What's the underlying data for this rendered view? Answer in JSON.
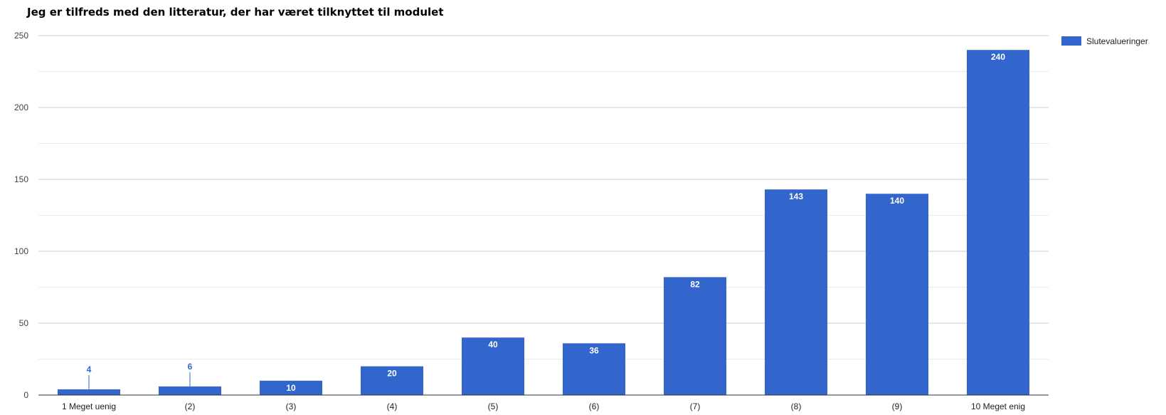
{
  "chart_data": {
    "type": "bar",
    "title": "Jeg er tilfreds med den litteratur, der har været tilknyttet til modulet",
    "xlabel": "",
    "ylabel": "",
    "categories": [
      "1 Meget uenig",
      "(2)",
      "(3)",
      "(4)",
      "(5)",
      "(6)",
      "(7)",
      "(8)",
      "(9)",
      "10 Meget enig"
    ],
    "series": [
      {
        "name": "Slutevalueringer",
        "values": [
          4,
          6,
          10,
          20,
          40,
          36,
          82,
          143,
          140,
          240
        ]
      }
    ],
    "ylim": [
      0,
      250
    ],
    "yticks": [
      0,
      50,
      100,
      150,
      200,
      250
    ],
    "grid": true,
    "minor_grid": true,
    "legend_position": "right",
    "colors": {
      "bar": "#3366cc",
      "label_inside": "#ffffff",
      "label_outside": "#3366cc",
      "grid_major": "#cccccc",
      "grid_minor": "#ebebeb",
      "axis": "#333333"
    }
  }
}
